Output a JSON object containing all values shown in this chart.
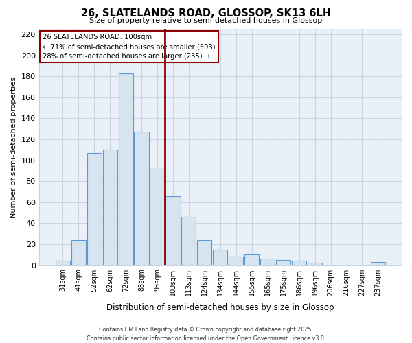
{
  "title": "26, SLATELANDS ROAD, GLOSSOP, SK13 6LH",
  "subtitle": "Size of property relative to semi-detached houses in Glossop",
  "xlabel": "Distribution of semi-detached houses by size in Glossop",
  "ylabel": "Number of semi-detached properties",
  "bar_labels": [
    "31sqm",
    "41sqm",
    "52sqm",
    "62sqm",
    "72sqm",
    "83sqm",
    "93sqm",
    "103sqm",
    "113sqm",
    "124sqm",
    "134sqm",
    "144sqm",
    "155sqm",
    "165sqm",
    "175sqm",
    "186sqm",
    "196sqm",
    "206sqm",
    "216sqm",
    "227sqm",
    "237sqm"
  ],
  "bar_values": [
    4,
    24,
    107,
    110,
    183,
    127,
    92,
    66,
    46,
    24,
    15,
    8,
    11,
    6,
    5,
    4,
    2,
    0,
    0,
    0,
    3
  ],
  "bar_color": "#d6e4f0",
  "bar_edge_color": "#5b9bd5",
  "vline_index": 7,
  "annotation_title": "26 SLATELANDS ROAD: 100sqm",
  "annotation_line1": "← 71% of semi-detached houses are smaller (593)",
  "annotation_line2": "28% of semi-detached houses are larger (235) →",
  "vline_color": "#8b0000",
  "annotation_box_edge_color": "#8b0000",
  "ylim": [
    0,
    225
  ],
  "yticks": [
    0,
    20,
    40,
    60,
    80,
    100,
    120,
    140,
    160,
    180,
    200,
    220
  ],
  "footer_line1": "Contains HM Land Registry data © Crown copyright and database right 2025.",
  "footer_line2": "Contains public sector information licensed under the Open Government Licence v3.0.",
  "plot_bg_color": "#eaf0f8",
  "fig_bg_color": "#ffffff",
  "grid_color": "#c8d4e0"
}
